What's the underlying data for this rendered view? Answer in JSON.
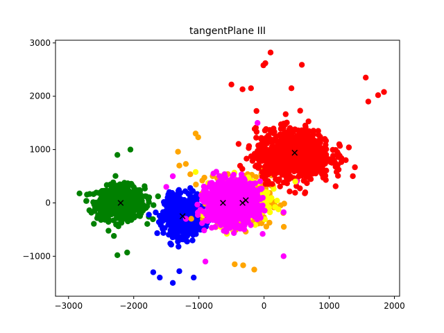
{
  "chart_data": {
    "type": "scatter",
    "title": "tangentPlane III",
    "xlabel": "",
    "ylabel": "",
    "xlim": [
      -3200,
      2080
    ],
    "ylim": [
      -1750,
      3050
    ],
    "x_ticks": [
      -3000,
      -2000,
      -1000,
      0,
      1000,
      2000
    ],
    "y_ticks": [
      -1000,
      0,
      1000,
      2000,
      3000
    ],
    "x_tick_labels": [
      "−3000",
      "−2000",
      "−1000",
      "0",
      "1000",
      "2000"
    ],
    "y_tick_labels": [
      "−1000",
      "0",
      "1000",
      "2000",
      "3000"
    ],
    "grid": false,
    "legend": "none",
    "clusters": [
      {
        "color": "#008000",
        "center": [
          -2200,
          0
        ],
        "spread": [
          330,
          280
        ],
        "count": 750
      },
      {
        "color": "#0000ff",
        "center": [
          -1250,
          -250
        ],
        "spread": [
          250,
          330
        ],
        "count": 650
      },
      {
        "color": "#ffa500",
        "center": [
          -350,
          50
        ],
        "spread": [
          420,
          420
        ],
        "count": 450
      },
      {
        "color": "#ffff00",
        "center": [
          -350,
          50
        ],
        "spread": [
          380,
          380
        ],
        "count": 250
      },
      {
        "color": "#ff0000",
        "center": [
          450,
          900
        ],
        "spread": [
          520,
          420
        ],
        "count": 950
      },
      {
        "color": "#ff00ff",
        "center": [
          -500,
          0
        ],
        "spread": [
          340,
          350
        ],
        "count": 1200
      }
    ],
    "outliers": [
      {
        "color": "#ff0000",
        "points": [
          [
            100,
            2820
          ],
          [
            20,
            2620
          ],
          [
            -10,
            2580
          ],
          [
            580,
            2590
          ],
          [
            1560,
            2350
          ],
          [
            1840,
            2080
          ],
          [
            1750,
            2020
          ],
          [
            1600,
            1900
          ],
          [
            420,
            2150
          ],
          [
            -200,
            2150
          ],
          [
            -330,
            2130
          ],
          [
            -500,
            2220
          ]
        ]
      },
      {
        "color": "#ffa500",
        "points": [
          [
            -1050,
            1300
          ],
          [
            -1010,
            1230
          ],
          [
            -1320,
            960
          ],
          [
            -1300,
            700
          ],
          [
            -1200,
            730
          ],
          [
            -320,
            -1170
          ],
          [
            -150,
            -1250
          ],
          [
            -450,
            -1150
          ]
        ]
      },
      {
        "color": "#0000ff",
        "points": [
          [
            -1400,
            -1500
          ],
          [
            -1600,
            -1400
          ],
          [
            -1700,
            -1300
          ],
          [
            -1080,
            -1400
          ],
          [
            -1300,
            -1280
          ]
        ]
      },
      {
        "color": "#008000",
        "points": [
          [
            -2250,
            -980
          ],
          [
            -2100,
            -930
          ],
          [
            -2050,
            1000
          ],
          [
            -2250,
            900
          ]
        ]
      },
      {
        "color": "#ff00ff",
        "points": [
          [
            -1400,
            500
          ],
          [
            -1500,
            300
          ],
          [
            -1200,
            -300
          ],
          [
            500,
            400
          ],
          [
            -100,
            1500
          ],
          [
            -900,
            -1100
          ],
          [
            300,
            -1000
          ]
        ]
      },
      {
        "color": "#ffff00",
        "points": [
          [
            -1050,
            580
          ],
          [
            480,
            400
          ]
        ]
      }
    ],
    "centroids": [
      {
        "label": "centroid-green",
        "x": -2200,
        "y": 0
      },
      {
        "label": "centroid-blue",
        "x": -1250,
        "y": -250
      },
      {
        "label": "centroid-magenta",
        "x": -630,
        "y": 0
      },
      {
        "label": "centroid-orange",
        "x": -330,
        "y": 0
      },
      {
        "label": "centroid-yellow",
        "x": -280,
        "y": 50
      },
      {
        "label": "centroid-red",
        "x": 470,
        "y": 940
      }
    ]
  }
}
